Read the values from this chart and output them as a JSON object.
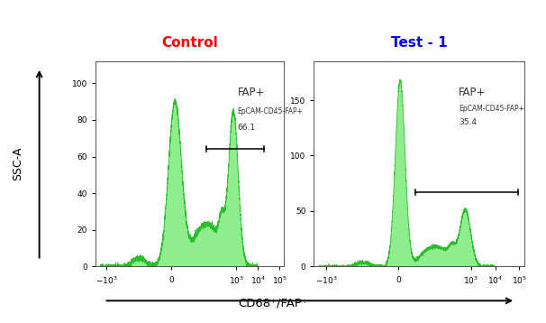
{
  "title_left": "Control",
  "title_right": "Test - 1",
  "title_left_color": "red",
  "title_right_color": "blue",
  "xlabel": "CD68⁺/FAP⁺",
  "ylabel": "SSC-A",
  "fill_color": "#88ee88",
  "edge_color": "#22bb22",
  "background_color": "white",
  "left_ylim": [
    0,
    112
  ],
  "right_ylim": [
    0,
    185
  ],
  "left_yticks": [
    0,
    20,
    40,
    60,
    80,
    100
  ],
  "right_yticks": [
    0,
    50,
    100,
    150
  ],
  "ann_left_label1": "FAP+",
  "ann_left_label2": "EpCAM-CD45-FAP+",
  "ann_left_label3": "66.1",
  "ann_right_label1": "FAP+",
  "ann_right_label2": "EpCAM-CD45-FAP+",
  "ann_right_label3": "35.4",
  "tick_positions": [
    -3,
    0,
    3,
    4,
    5
  ],
  "tick_labels": [
    "-10^3",
    "0",
    "10^3",
    "10^4",
    "10^5"
  ]
}
